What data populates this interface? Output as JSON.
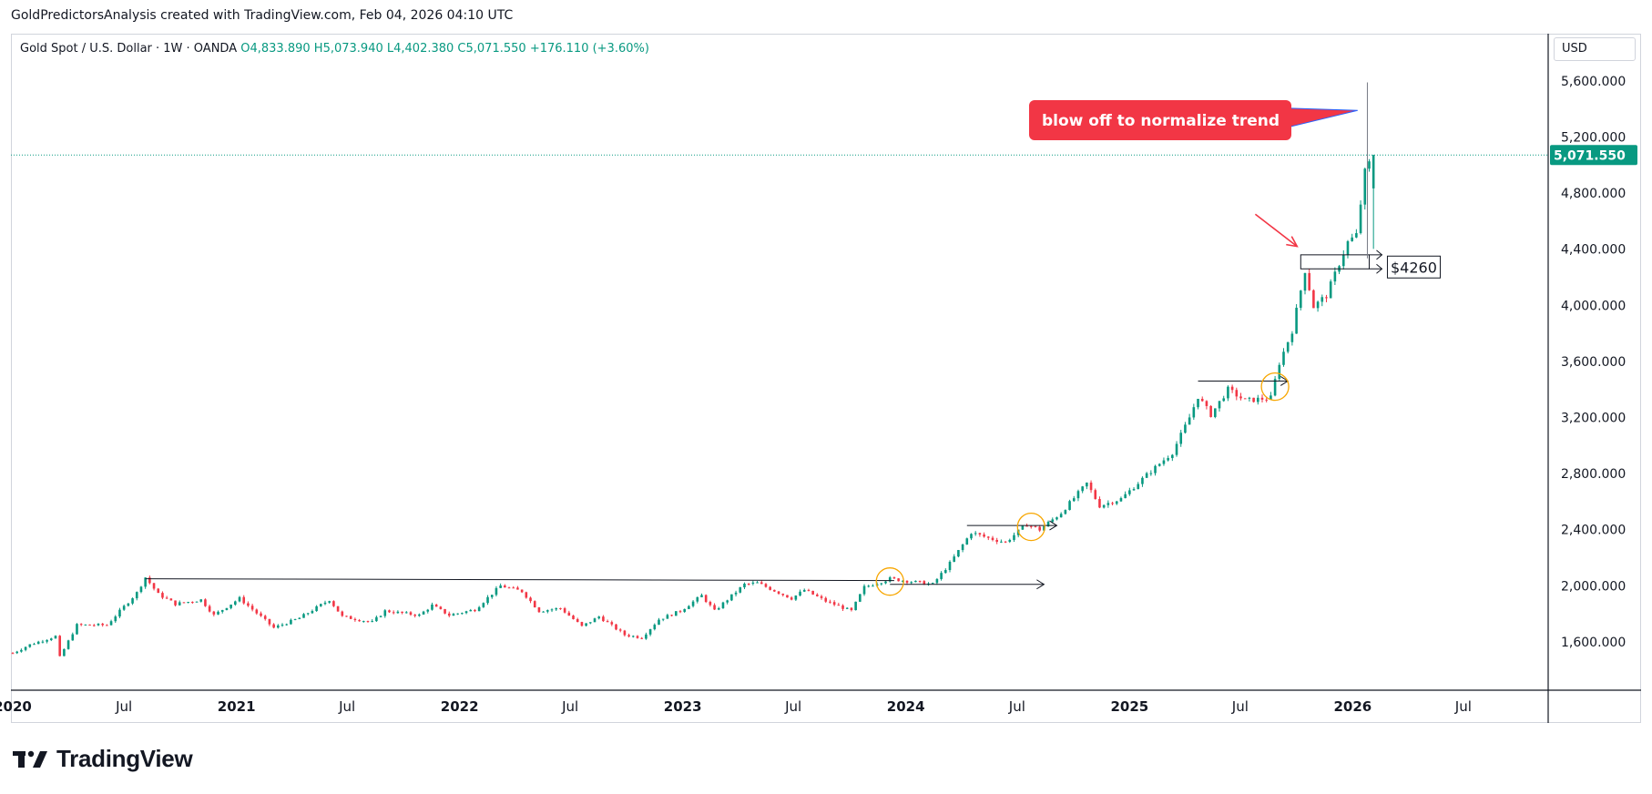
{
  "header": {
    "caption": "GoldPredictorsAnalysis created with TradingView.com, Feb 04, 2026 04:10 UTC"
  },
  "legend": {
    "symbol": "Gold Spot / U.S. Dollar · 1W · OANDA",
    "open": "O4,833.890",
    "high": "H5,073.940",
    "low": "L4,402.380",
    "close": "C5,071.550",
    "change": "+176.110 (+3.60%)"
  },
  "currency_button": "USD",
  "brand": {
    "name": "TradingView",
    "logo_icon": "tradingview-logo-icon"
  },
  "colors": {
    "up": "#089981",
    "down": "#f23645",
    "price_tag": "#089981",
    "callout": "#f23645",
    "circle": "#f7a600",
    "annotation": "#131722"
  },
  "chart_data": {
    "type": "candlestick",
    "y_axis": {
      "ticks": [
        1600,
        2000,
        2400,
        2800,
        3200,
        3600,
        4000,
        4400,
        4800,
        5200,
        5600
      ],
      "tick_labels": [
        "1,600.000",
        "2,000.000",
        "2,400.000",
        "2,800.000",
        "3,200.000",
        "3,600.000",
        "4,000.000",
        "4,400.000",
        "4,800.000",
        "5,200.000",
        "5,600.000"
      ]
    },
    "x_axis": {
      "labels": [
        {
          "date": "2020-01-01",
          "text": "2020",
          "bold": true
        },
        {
          "date": "2020-07-01",
          "text": "Jul",
          "bold": false
        },
        {
          "date": "2021-01-01",
          "text": "2021",
          "bold": true
        },
        {
          "date": "2021-07-01",
          "text": "Jul",
          "bold": false
        },
        {
          "date": "2022-01-01",
          "text": "2022",
          "bold": true
        },
        {
          "date": "2022-07-01",
          "text": "Jul",
          "bold": false
        },
        {
          "date": "2023-01-01",
          "text": "2023",
          "bold": true
        },
        {
          "date": "2023-07-01",
          "text": "Jul",
          "bold": false
        },
        {
          "date": "2024-01-01",
          "text": "2024",
          "bold": true
        },
        {
          "date": "2024-07-01",
          "text": "Jul",
          "bold": false
        },
        {
          "date": "2025-01-01",
          "text": "2025",
          "bold": true
        },
        {
          "date": "2025-07-01",
          "text": "Jul",
          "bold": false
        },
        {
          "date": "2026-01-01",
          "text": "2026",
          "bold": true
        },
        {
          "date": "2026-07-01",
          "text": "Jul",
          "bold": false
        }
      ]
    },
    "last_price": {
      "value": 5071.55,
      "label": "5,071.550"
    },
    "price_path": [
      [
        "2020-01-01",
        1520
      ],
      [
        "2020-01-29",
        1580
      ],
      [
        "2020-03-11",
        1640
      ],
      [
        "2020-03-18",
        1490
      ],
      [
        "2020-04-15",
        1720
      ],
      [
        "2020-06-03",
        1720
      ],
      [
        "2020-07-22",
        1950
      ],
      [
        "2020-08-05",
        2060
      ],
      [
        "2020-08-26",
        1940
      ],
      [
        "2020-09-23",
        1870
      ],
      [
        "2020-11-04",
        1900
      ],
      [
        "2020-11-25",
        1790
      ],
      [
        "2021-01-06",
        1910
      ],
      [
        "2021-03-03",
        1700
      ],
      [
        "2021-04-14",
        1770
      ],
      [
        "2021-06-02",
        1900
      ],
      [
        "2021-06-23",
        1780
      ],
      [
        "2021-08-11",
        1740
      ],
      [
        "2021-09-01",
        1820
      ],
      [
        "2021-10-27",
        1790
      ],
      [
        "2021-11-17",
        1860
      ],
      [
        "2021-12-15",
        1790
      ],
      [
        "2022-01-26",
        1830
      ],
      [
        "2022-03-09",
        2000
      ],
      [
        "2022-04-13",
        1960
      ],
      [
        "2022-05-11",
        1820
      ],
      [
        "2022-06-15",
        1840
      ],
      [
        "2022-07-20",
        1710
      ],
      [
        "2022-08-17",
        1780
      ],
      [
        "2022-09-28",
        1650
      ],
      [
        "2022-10-26",
        1630
      ],
      [
        "2022-11-23",
        1760
      ],
      [
        "2022-12-28",
        1820
      ],
      [
        "2023-02-01",
        1930
      ],
      [
        "2023-02-22",
        1820
      ],
      [
        "2023-04-12",
        2010
      ],
      [
        "2023-05-03",
        2020
      ],
      [
        "2023-06-28",
        1910
      ],
      [
        "2023-07-19",
        1970
      ],
      [
        "2023-08-23",
        1890
      ],
      [
        "2023-10-04",
        1820
      ],
      [
        "2023-10-25",
        1990
      ],
      [
        "2023-12-06",
        2050
      ],
      [
        "2024-01-10",
        2030
      ],
      [
        "2024-02-14",
        2010
      ],
      [
        "2024-03-13",
        2160
      ],
      [
        "2024-04-17",
        2380
      ],
      [
        "2024-05-15",
        2340
      ],
      [
        "2024-06-12",
        2310
      ],
      [
        "2024-07-17",
        2440
      ],
      [
        "2024-08-07",
        2400
      ],
      [
        "2024-09-11",
        2520
      ],
      [
        "2024-10-23",
        2730
      ],
      [
        "2024-11-13",
        2570
      ],
      [
        "2024-12-18",
        2620
      ],
      [
        "2025-01-29",
        2790
      ],
      [
        "2025-03-12",
        2950
      ],
      [
        "2025-04-09",
        3200
      ],
      [
        "2025-04-23",
        3350
      ],
      [
        "2025-05-14",
        3220
      ],
      [
        "2025-06-11",
        3400
      ],
      [
        "2025-07-09",
        3320
      ],
      [
        "2025-08-20",
        3340
      ],
      [
        "2025-09-03",
        3590
      ],
      [
        "2025-09-24",
        3820
      ],
      [
        "2025-10-15",
        4250
      ],
      [
        "2025-10-29",
        3990
      ],
      [
        "2025-11-19",
        4070
      ],
      [
        "2025-12-24",
        4450
      ],
      [
        "2026-01-07",
        4500
      ],
      [
        "2026-01-21",
        4950
      ],
      [
        "2026-02-04",
        5071.55
      ]
    ],
    "annotations": {
      "callout_text": "blow off to normalize trend",
      "level_label": "$4260",
      "level_value": 4260,
      "upper_box_value": 4360,
      "resistance_2020": {
        "from": "2020-08-05",
        "to": "2023-12-13",
        "value": 2050
      },
      "breakout_arrows": [
        {
          "from": "2023-12-06",
          "to": "2024-08-14",
          "value": 2010
        },
        {
          "from": "2024-04-10",
          "to": "2024-09-04",
          "value": 2430
        },
        {
          "from": "2025-04-23",
          "to": "2025-09-17",
          "value": 3460
        }
      ],
      "breakout_circles": [
        {
          "date": "2023-12-06",
          "value": 2030
        },
        {
          "date": "2024-07-24",
          "value": 2420
        },
        {
          "date": "2025-08-27",
          "value": 3420
        }
      ],
      "spike_high": 5590,
      "spike_low": 4400
    }
  }
}
